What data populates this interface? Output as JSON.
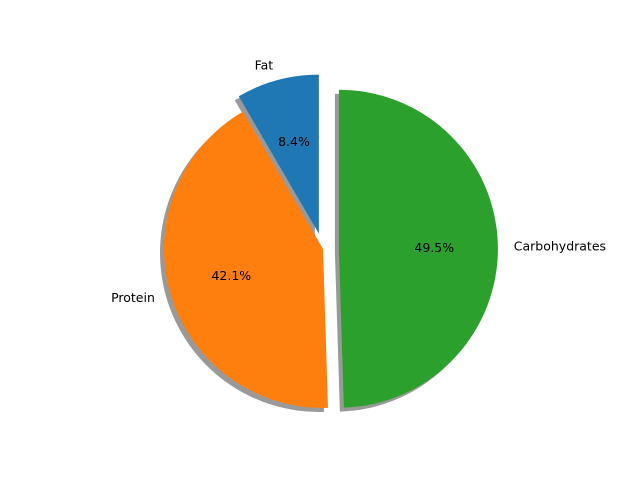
{
  "chart_data": {
    "type": "pie",
    "labels": [
      "Fat",
      "Protein",
      "Carbohydrates"
    ],
    "values": [
      8.4,
      42.1,
      49.5
    ],
    "percent_labels": [
      "8.4%",
      "42.1%",
      "49.5%"
    ],
    "colors": [
      "#1f77b4",
      "#ff7f0e",
      "#2ca02c"
    ],
    "explode": [
      0.1,
      0.0,
      0.1
    ],
    "shadow": true,
    "start_angle_deg": 90,
    "direction": "counterclockwise",
    "title": ""
  }
}
